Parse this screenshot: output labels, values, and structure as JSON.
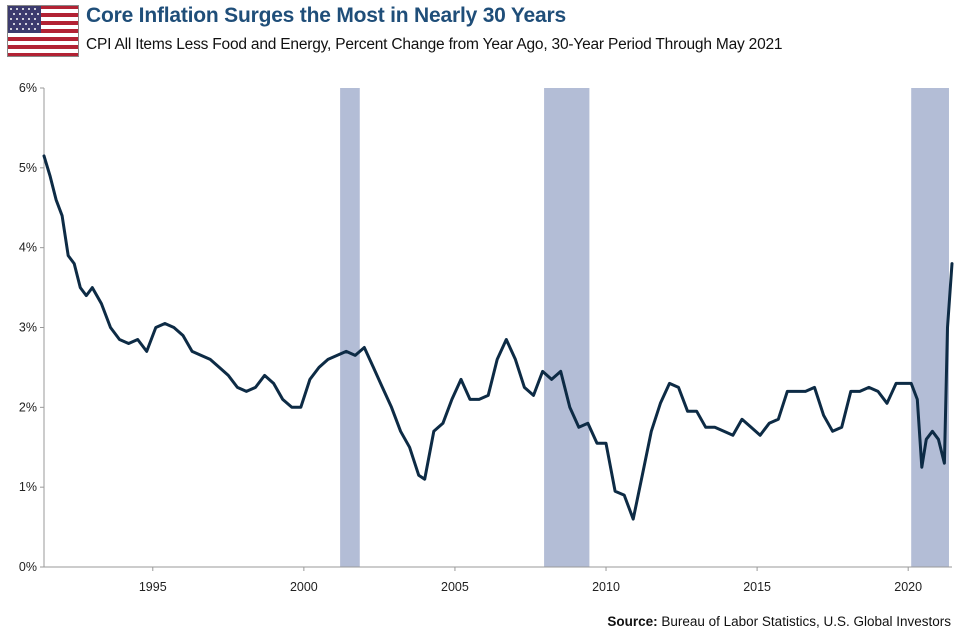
{
  "title": "Core Inflation Surges the Most in Nearly 30 Years",
  "subtitle": "CPI All Items Less Food and Energy, Percent Change from Year Ago, 30-Year Period Through May 2021",
  "source_label": "Source:",
  "source_text": "Bureau of Labor Statistics, U.S. Global Investors",
  "colors": {
    "line": "#0d2b45",
    "recession": "#b3bdd6",
    "title": "#1f4e79",
    "axis": "#999999"
  },
  "chart_data": {
    "type": "line",
    "title": "Core Inflation Surges the Most in Nearly 30 Years",
    "xlabel": "",
    "ylabel": "",
    "xlim": [
      1991.4,
      2021.45
    ],
    "ylim": [
      0,
      6
    ],
    "y_ticks": [
      0,
      1,
      2,
      3,
      4,
      5,
      6
    ],
    "y_tick_labels": [
      "0%",
      "1%",
      "2%",
      "3%",
      "4%",
      "5%",
      "6%"
    ],
    "x_ticks": [
      1995,
      2000,
      2005,
      2010,
      2015,
      2020
    ],
    "x_tick_labels": [
      "1995",
      "2000",
      "2005",
      "2010",
      "2015",
      "2020"
    ],
    "recessions": [
      {
        "start": 2001.2,
        "end": 2001.85
      },
      {
        "start": 2007.95,
        "end": 2009.45
      },
      {
        "start": 2020.1,
        "end": 2021.35
      }
    ],
    "series": [
      {
        "name": "Core CPI YoY % change",
        "x": [
          1991.4,
          1991.6,
          1991.8,
          1992.0,
          1992.2,
          1992.4,
          1992.6,
          1992.8,
          1993.0,
          1993.3,
          1993.6,
          1993.9,
          1994.2,
          1994.5,
          1994.8,
          1995.1,
          1995.4,
          1995.7,
          1996.0,
          1996.3,
          1996.6,
          1996.9,
          1997.2,
          1997.5,
          1997.8,
          1998.1,
          1998.4,
          1998.7,
          1999.0,
          1999.3,
          1999.6,
          1999.9,
          2000.2,
          2000.5,
          2000.8,
          2001.1,
          2001.4,
          2001.7,
          2002.0,
          2002.3,
          2002.6,
          2002.9,
          2003.2,
          2003.5,
          2003.8,
          2004.0,
          2004.3,
          2004.6,
          2004.9,
          2005.2,
          2005.5,
          2005.8,
          2006.1,
          2006.4,
          2006.7,
          2007.0,
          2007.3,
          2007.6,
          2007.9,
          2008.2,
          2008.5,
          2008.8,
          2009.1,
          2009.4,
          2009.7,
          2010.0,
          2010.3,
          2010.6,
          2010.9,
          2011.2,
          2011.5,
          2011.8,
          2012.1,
          2012.4,
          2012.7,
          2013.0,
          2013.3,
          2013.6,
          2013.9,
          2014.2,
          2014.5,
          2014.8,
          2015.1,
          2015.4,
          2015.7,
          2016.0,
          2016.3,
          2016.6,
          2016.9,
          2017.2,
          2017.5,
          2017.8,
          2018.1,
          2018.4,
          2018.7,
          2019.0,
          2019.3,
          2019.6,
          2019.9,
          2020.1,
          2020.3,
          2020.45,
          2020.6,
          2020.8,
          2021.0,
          2021.2,
          2021.3,
          2021.45
        ],
        "values": [
          5.15,
          4.9,
          4.6,
          4.4,
          3.9,
          3.8,
          3.5,
          3.4,
          3.5,
          3.3,
          3.0,
          2.85,
          2.8,
          2.85,
          2.7,
          3.0,
          3.05,
          3.0,
          2.9,
          2.7,
          2.65,
          2.6,
          2.5,
          2.4,
          2.25,
          2.2,
          2.25,
          2.4,
          2.3,
          2.1,
          2.0,
          2.0,
          2.35,
          2.5,
          2.6,
          2.65,
          2.7,
          2.65,
          2.75,
          2.5,
          2.25,
          2.0,
          1.7,
          1.5,
          1.15,
          1.1,
          1.7,
          1.8,
          2.1,
          2.35,
          2.1,
          2.1,
          2.15,
          2.6,
          2.85,
          2.6,
          2.25,
          2.15,
          2.45,
          2.35,
          2.45,
          2.0,
          1.75,
          1.8,
          1.55,
          1.55,
          0.95,
          0.9,
          0.6,
          1.15,
          1.7,
          2.05,
          2.3,
          2.25,
          1.95,
          1.95,
          1.75,
          1.75,
          1.7,
          1.65,
          1.85,
          1.75,
          1.65,
          1.8,
          1.85,
          2.2,
          2.2,
          2.2,
          2.25,
          1.9,
          1.7,
          1.75,
          2.2,
          2.2,
          2.25,
          2.2,
          2.05,
          2.3,
          2.3,
          2.3,
          2.1,
          1.25,
          1.6,
          1.7,
          1.6,
          1.3,
          3.0,
          3.8
        ]
      }
    ]
  }
}
